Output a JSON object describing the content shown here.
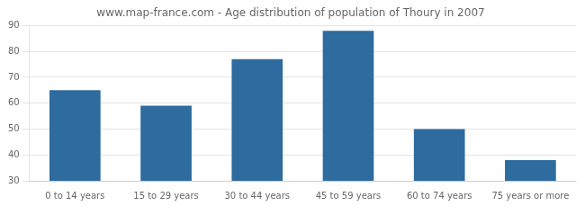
{
  "chart_data": {
    "type": "bar",
    "title": "www.map-france.com - Age distribution of population of Thoury in 2007",
    "categories": [
      "0 to 14 years",
      "15 to 29 years",
      "30 to 44 years",
      "45 to 59 years",
      "60 to 74 years",
      "75 years or more"
    ],
    "values": [
      65,
      59,
      77,
      88,
      50,
      38
    ],
    "color": "#2e6b9e",
    "ylim": [
      30,
      90
    ],
    "yticks": [
      30,
      40,
      50,
      60,
      70,
      80,
      90
    ],
    "grid": true
  }
}
